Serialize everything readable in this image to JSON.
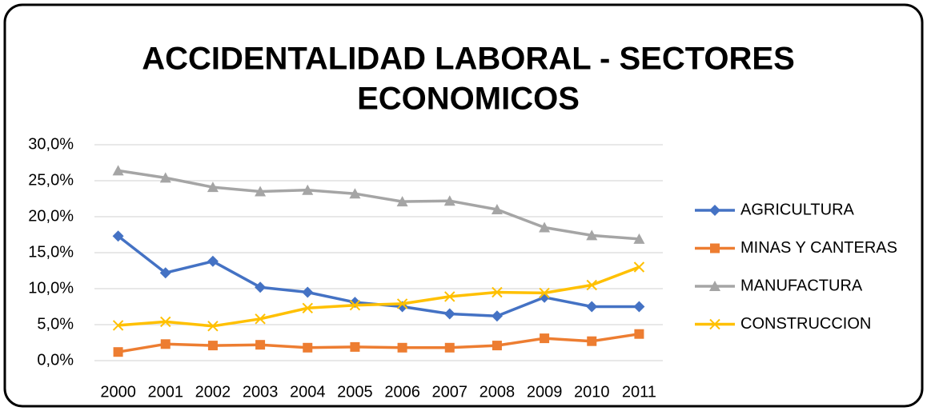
{
  "chart_data": {
    "type": "line",
    "title": [
      "ACCIDENTALIDAD LABORAL -  SECTORES",
      "ECONOMICOS"
    ],
    "categories": [
      "2000",
      "2001",
      "2002",
      "2003",
      "2004",
      "2005",
      "2006",
      "2007",
      "2008",
      "2009",
      "2010",
      "2011"
    ],
    "series": [
      {
        "name": "AGRICULTURA",
        "color": "#4472c4",
        "marker": "diamond",
        "values": [
          17.3,
          12.2,
          13.8,
          10.2,
          9.5,
          8.1,
          7.5,
          6.5,
          6.2,
          8.8,
          7.5,
          7.5
        ]
      },
      {
        "name": "MINAS Y CANTERAS",
        "color": "#ed7d31",
        "marker": "square",
        "values": [
          1.2,
          2.3,
          2.1,
          2.2,
          1.8,
          1.9,
          1.8,
          1.8,
          2.1,
          3.1,
          2.7,
          3.7
        ]
      },
      {
        "name": "MANUFACTURA",
        "color": "#a5a5a5",
        "marker": "triangle",
        "values": [
          26.4,
          25.4,
          24.1,
          23.5,
          23.7,
          23.2,
          22.1,
          22.2,
          21.0,
          18.5,
          17.4,
          16.9
        ]
      },
      {
        "name": "CONSTRUCCION",
        "color": "#ffc000",
        "marker": "x",
        "values": [
          4.9,
          5.4,
          4.8,
          5.8,
          7.3,
          7.7,
          7.9,
          8.9,
          9.5,
          9.4,
          10.5,
          13.0
        ]
      }
    ],
    "ylim": [
      0,
      30
    ],
    "yticks": [
      {
        "value": 0,
        "label": "0,0%"
      },
      {
        "value": 5,
        "label": "5,0%"
      },
      {
        "value": 10,
        "label": "10,0%"
      },
      {
        "value": 15,
        "label": "15,0%"
      },
      {
        "value": 20,
        "label": "20,0%"
      },
      {
        "value": 25,
        "label": "25,0%"
      },
      {
        "value": 30,
        "label": "30,0%"
      }
    ],
    "grid": true,
    "legend": "right"
  }
}
